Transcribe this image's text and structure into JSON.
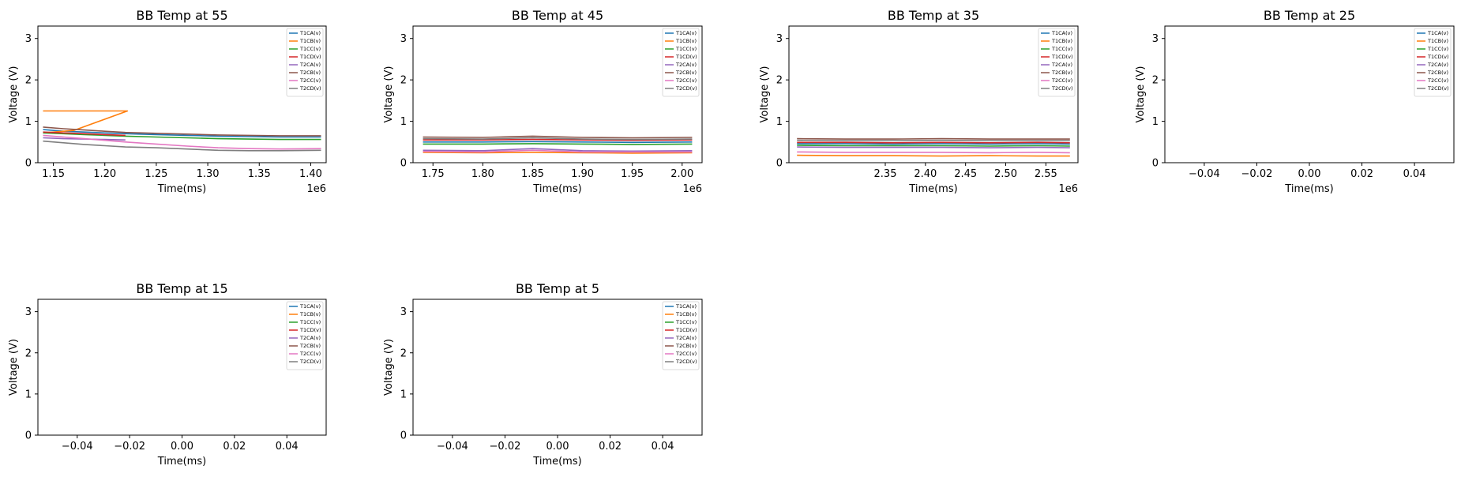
{
  "figure": {
    "background": "#ffffff",
    "series_colors": [
      "#1f77b4",
      "#ff7f0e",
      "#2ca02c",
      "#d62728",
      "#9467bd",
      "#8c564b",
      "#e377c2",
      "#7f7f7f"
    ]
  },
  "chart_data": [
    {
      "type": "line",
      "title": "BB Temp at 55",
      "xlabel": "Time(ms)",
      "ylabel": "Voltage (V)",
      "xlim": [
        1.135,
        1.415
      ],
      "ylim": [
        0,
        3.3
      ],
      "x_offset_label": "1e6",
      "xticks": [
        1.15,
        1.2,
        1.25,
        1.3,
        1.35,
        1.4
      ],
      "xtick_labels": [
        "1.15",
        "1.20",
        "1.25",
        "1.30",
        "1.35",
        "1.40"
      ],
      "yticks": [
        0,
        1,
        2,
        3
      ],
      "ytick_labels": [
        "0",
        "1",
        "2",
        "3"
      ],
      "legend": "top-right",
      "grid": false,
      "series": [
        {
          "name": "T1CA(v)",
          "color": "#1f77b4",
          "x": [
            1.14,
            1.16,
            1.18,
            1.2,
            1.22,
            1.25,
            1.28,
            1.31,
            1.34,
            1.37,
            1.41
          ],
          "y": [
            0.8,
            0.76,
            0.74,
            0.72,
            0.7,
            0.68,
            0.66,
            0.64,
            0.63,
            0.62,
            0.62
          ]
        },
        {
          "name": "T1CB(v)",
          "color": "#ff7f0e",
          "x": [
            1.14,
            1.222,
            1.17,
            1.14
          ],
          "y": [
            1.25,
            1.25,
            0.78,
            0.72
          ]
        },
        {
          "name": "T1CC(v)",
          "color": "#2ca02c",
          "x": [
            1.14,
            1.16,
            1.18,
            1.2,
            1.22,
            1.25,
            1.28,
            1.31,
            1.34,
            1.37,
            1.41
          ],
          "y": [
            0.72,
            0.7,
            0.68,
            0.66,
            0.64,
            0.62,
            0.6,
            0.58,
            0.57,
            0.56,
            0.56
          ]
        },
        {
          "name": "T1CD(v)",
          "color": "#d62728",
          "x": [
            1.14,
            1.16,
            1.18,
            1.2,
            1.22
          ],
          "y": [
            0.74,
            0.72,
            0.7,
            0.68,
            0.66
          ]
        },
        {
          "name": "T2CA(v)",
          "color": "#9467bd",
          "x": [
            1.14,
            1.16,
            1.18,
            1.2,
            1.22
          ],
          "y": [
            0.6,
            0.58,
            0.57,
            0.56,
            0.55
          ]
        },
        {
          "name": "T2CB(v)",
          "color": "#8c564b",
          "x": [
            1.14,
            1.16,
            1.18,
            1.2,
            1.22,
            1.25,
            1.28,
            1.31,
            1.34,
            1.37,
            1.41
          ],
          "y": [
            0.86,
            0.82,
            0.79,
            0.76,
            0.73,
            0.71,
            0.69,
            0.67,
            0.66,
            0.65,
            0.65
          ]
        },
        {
          "name": "T2CC(v)",
          "color": "#e377c2",
          "x": [
            1.14,
            1.16,
            1.18,
            1.2,
            1.22,
            1.25,
            1.28,
            1.31,
            1.34,
            1.37,
            1.41
          ],
          "y": [
            0.66,
            0.62,
            0.58,
            0.54,
            0.5,
            0.45,
            0.4,
            0.36,
            0.34,
            0.33,
            0.34
          ]
        },
        {
          "name": "T2CD(v)",
          "color": "#7f7f7f",
          "x": [
            1.14,
            1.16,
            1.18,
            1.2,
            1.22,
            1.25,
            1.28,
            1.31,
            1.34,
            1.37,
            1.41
          ],
          "y": [
            0.52,
            0.48,
            0.44,
            0.41,
            0.38,
            0.36,
            0.33,
            0.3,
            0.29,
            0.29,
            0.3
          ]
        }
      ]
    },
    {
      "type": "line",
      "title": "BB Temp at 45",
      "xlabel": "Time(ms)",
      "ylabel": "Voltage (V)",
      "xlim": [
        1.73,
        2.02
      ],
      "ylim": [
        0,
        3.3
      ],
      "x_offset_label": "1e6",
      "xticks": [
        1.75,
        1.8,
        1.85,
        1.9,
        1.95,
        2.0
      ],
      "xtick_labels": [
        "1.75",
        "1.80",
        "1.85",
        "1.90",
        "1.95",
        "2.00"
      ],
      "yticks": [
        0,
        1,
        2,
        3
      ],
      "ytick_labels": [
        "0",
        "1",
        "2",
        "3"
      ],
      "legend": "top-right",
      "grid": false,
      "series": [
        {
          "name": "T1CA(v)",
          "color": "#1f77b4",
          "x": [
            1.74,
            1.8,
            1.85,
            1.9,
            1.95,
            2.01
          ],
          "y": [
            0.5,
            0.5,
            0.51,
            0.5,
            0.49,
            0.5
          ]
        },
        {
          "name": "T1CB(v)",
          "color": "#ff7f0e",
          "x": [
            1.74,
            1.8,
            1.85,
            1.9,
            1.95,
            2.01
          ],
          "y": [
            0.25,
            0.24,
            0.25,
            0.24,
            0.23,
            0.24
          ]
        },
        {
          "name": "T1CC(v)",
          "color": "#2ca02c",
          "x": [
            1.74,
            1.8,
            1.85,
            1.9,
            1.95,
            2.01
          ],
          "y": [
            0.45,
            0.45,
            0.46,
            0.45,
            0.44,
            0.45
          ]
        },
        {
          "name": "T1CD(v)",
          "color": "#d62728",
          "x": [
            1.74,
            1.8,
            1.85,
            1.9,
            1.95,
            2.01
          ],
          "y": [
            0.55,
            0.55,
            0.56,
            0.55,
            0.54,
            0.55
          ]
        },
        {
          "name": "T2CA(v)",
          "color": "#9467bd",
          "x": [
            1.74,
            1.8,
            1.85,
            1.9,
            1.95,
            2.01
          ],
          "y": [
            0.3,
            0.29,
            0.34,
            0.29,
            0.28,
            0.29
          ]
        },
        {
          "name": "T2CB(v)",
          "color": "#8c564b",
          "x": [
            1.74,
            1.8,
            1.85,
            1.9,
            1.95,
            2.01
          ],
          "y": [
            0.62,
            0.61,
            0.64,
            0.61,
            0.6,
            0.61
          ]
        },
        {
          "name": "T2CC(v)",
          "color": "#e377c2",
          "x": [
            1.74,
            1.8,
            1.85,
            1.9,
            1.95,
            2.01
          ],
          "y": [
            0.27,
            0.26,
            0.3,
            0.26,
            0.26,
            0.26
          ]
        },
        {
          "name": "T2CD(v)",
          "color": "#7f7f7f",
          "x": [
            1.74,
            1.8,
            1.85,
            1.9,
            1.95,
            2.01
          ],
          "y": [
            0.58,
            0.57,
            0.6,
            0.57,
            0.56,
            0.57
          ]
        }
      ]
    },
    {
      "type": "line",
      "title": "BB Temp at 35",
      "xlabel": "Time(ms)",
      "ylabel": "Voltage (V)",
      "xlim": [
        2.23,
        2.59
      ],
      "ylim": [
        0,
        3.3
      ],
      "x_offset_label": "1e6",
      "xticks": [
        2.35,
        2.4,
        2.45,
        2.5,
        2.55
      ],
      "xtick_labels": [
        "2.35",
        "2.40",
        "2.45",
        "2.50",
        "2.55"
      ],
      "yticks": [
        0,
        1,
        2,
        3
      ],
      "ytick_labels": [
        "0",
        "1",
        "2",
        "3"
      ],
      "legend": "top-right",
      "grid": false,
      "series": [
        {
          "name": "T1CA(v)",
          "color": "#1f77b4",
          "x": [
            2.24,
            2.3,
            2.36,
            2.42,
            2.48,
            2.54,
            2.58
          ],
          "y": [
            0.46,
            0.46,
            0.45,
            0.46,
            0.45,
            0.46,
            0.45
          ]
        },
        {
          "name": "T1CB(v)",
          "color": "#ff7f0e",
          "x": [
            2.24,
            2.3,
            2.36,
            2.42,
            2.48,
            2.54,
            2.58
          ],
          "y": [
            0.18,
            0.17,
            0.17,
            0.16,
            0.17,
            0.16,
            0.16
          ]
        },
        {
          "name": "T1CC(v)",
          "color": "#2ca02c",
          "x": [
            2.24,
            2.3,
            2.36,
            2.42,
            2.48,
            2.54,
            2.58
          ],
          "y": [
            0.42,
            0.41,
            0.41,
            0.41,
            0.4,
            0.41,
            0.4
          ]
        },
        {
          "name": "T1CD(v)",
          "color": "#d62728",
          "x": [
            2.24,
            2.3,
            2.36,
            2.42,
            2.48,
            2.54,
            2.58
          ],
          "y": [
            0.49,
            0.49,
            0.48,
            0.49,
            0.48,
            0.49,
            0.48
          ]
        },
        {
          "name": "T2CA(v)",
          "color": "#9467bd",
          "x": [
            2.24,
            2.3,
            2.36,
            2.42,
            2.48,
            2.54,
            2.58
          ],
          "y": [
            0.38,
            0.37,
            0.37,
            0.37,
            0.36,
            0.37,
            0.36
          ]
        },
        {
          "name": "T2CB(v)",
          "color": "#8c564b",
          "x": [
            2.24,
            2.3,
            2.36,
            2.42,
            2.48,
            2.54,
            2.58
          ],
          "y": [
            0.58,
            0.57,
            0.57,
            0.58,
            0.57,
            0.57,
            0.57
          ]
        },
        {
          "name": "T2CC(v)",
          "color": "#e377c2",
          "x": [
            2.24,
            2.3,
            2.36,
            2.42,
            2.48,
            2.54,
            2.58
          ],
          "y": [
            0.26,
            0.25,
            0.25,
            0.25,
            0.24,
            0.25,
            0.24
          ]
        },
        {
          "name": "T2CD(v)",
          "color": "#7f7f7f",
          "x": [
            2.24,
            2.3,
            2.36,
            2.42,
            2.48,
            2.54,
            2.58
          ],
          "y": [
            0.54,
            0.53,
            0.53,
            0.54,
            0.53,
            0.53,
            0.53
          ]
        }
      ]
    },
    {
      "type": "line",
      "title": "BB Temp at 25",
      "xlabel": "Time(ms)",
      "ylabel": "Voltage (V)",
      "xlim": [
        -0.055,
        0.055
      ],
      "ylim": [
        0,
        3.3
      ],
      "x_offset_label": "",
      "xticks": [
        -0.04,
        -0.02,
        0.0,
        0.02,
        0.04
      ],
      "xtick_labels": [
        "−0.04",
        "−0.02",
        "0.00",
        "0.02",
        "0.04"
      ],
      "yticks": [
        0,
        1,
        2,
        3
      ],
      "ytick_labels": [
        "0",
        "1",
        "2",
        "3"
      ],
      "legend": "top-right",
      "grid": false,
      "series": [
        {
          "name": "T1CA(v)",
          "color": "#1f77b4",
          "x": [],
          "y": []
        },
        {
          "name": "T1CB(v)",
          "color": "#ff7f0e",
          "x": [],
          "y": []
        },
        {
          "name": "T1CC(v)",
          "color": "#2ca02c",
          "x": [],
          "y": []
        },
        {
          "name": "T1CD(v)",
          "color": "#d62728",
          "x": [],
          "y": []
        },
        {
          "name": "T2CA(v)",
          "color": "#9467bd",
          "x": [],
          "y": []
        },
        {
          "name": "T2CB(v)",
          "color": "#8c564b",
          "x": [],
          "y": []
        },
        {
          "name": "T2CC(v)",
          "color": "#e377c2",
          "x": [],
          "y": []
        },
        {
          "name": "T2CD(v)",
          "color": "#7f7f7f",
          "x": [],
          "y": []
        }
      ]
    },
    {
      "type": "line",
      "title": "BB Temp at 15",
      "xlabel": "Time(ms)",
      "ylabel": "Voltage (V)",
      "xlim": [
        -0.055,
        0.055
      ],
      "ylim": [
        0,
        3.3
      ],
      "x_offset_label": "",
      "xticks": [
        -0.04,
        -0.02,
        0.0,
        0.02,
        0.04
      ],
      "xtick_labels": [
        "−0.04",
        "−0.02",
        "0.00",
        "0.02",
        "0.04"
      ],
      "yticks": [
        0,
        1,
        2,
        3
      ],
      "ytick_labels": [
        "0",
        "1",
        "2",
        "3"
      ],
      "legend": "top-right",
      "grid": false,
      "series": [
        {
          "name": "T1CA(v)",
          "color": "#1f77b4",
          "x": [],
          "y": []
        },
        {
          "name": "T1CB(v)",
          "color": "#ff7f0e",
          "x": [],
          "y": []
        },
        {
          "name": "T1CC(v)",
          "color": "#2ca02c",
          "x": [],
          "y": []
        },
        {
          "name": "T1CD(v)",
          "color": "#d62728",
          "x": [],
          "y": []
        },
        {
          "name": "T2CA(v)",
          "color": "#9467bd",
          "x": [],
          "y": []
        },
        {
          "name": "T2CB(v)",
          "color": "#8c564b",
          "x": [],
          "y": []
        },
        {
          "name": "T2CC(v)",
          "color": "#e377c2",
          "x": [],
          "y": []
        },
        {
          "name": "T2CD(v)",
          "color": "#7f7f7f",
          "x": [],
          "y": []
        }
      ]
    },
    {
      "type": "line",
      "title": "BB Temp at 5",
      "xlabel": "Time(ms)",
      "ylabel": "Voltage (V)",
      "xlim": [
        -0.055,
        0.055
      ],
      "ylim": [
        0,
        3.3
      ],
      "x_offset_label": "",
      "xticks": [
        -0.04,
        -0.02,
        0.0,
        0.02,
        0.04
      ],
      "xtick_labels": [
        "−0.04",
        "−0.02",
        "0.00",
        "0.02",
        "0.04"
      ],
      "yticks": [
        0,
        1,
        2,
        3
      ],
      "ytick_labels": [
        "0",
        "1",
        "2",
        "3"
      ],
      "legend": "top-right",
      "grid": false,
      "series": [
        {
          "name": "T1CA(v)",
          "color": "#1f77b4",
          "x": [],
          "y": []
        },
        {
          "name": "T1CB(v)",
          "color": "#ff7f0e",
          "x": [],
          "y": []
        },
        {
          "name": "T1CC(v)",
          "color": "#2ca02c",
          "x": [],
          "y": []
        },
        {
          "name": "T1CD(v)",
          "color": "#d62728",
          "x": [],
          "y": []
        },
        {
          "name": "T2CA(v)",
          "color": "#9467bd",
          "x": [],
          "y": []
        },
        {
          "name": "T2CB(v)",
          "color": "#8c564b",
          "x": [],
          "y": []
        },
        {
          "name": "T2CC(v)",
          "color": "#e377c2",
          "x": [],
          "y": []
        },
        {
          "name": "T2CD(v)",
          "color": "#7f7f7f",
          "x": [],
          "y": []
        }
      ]
    }
  ]
}
